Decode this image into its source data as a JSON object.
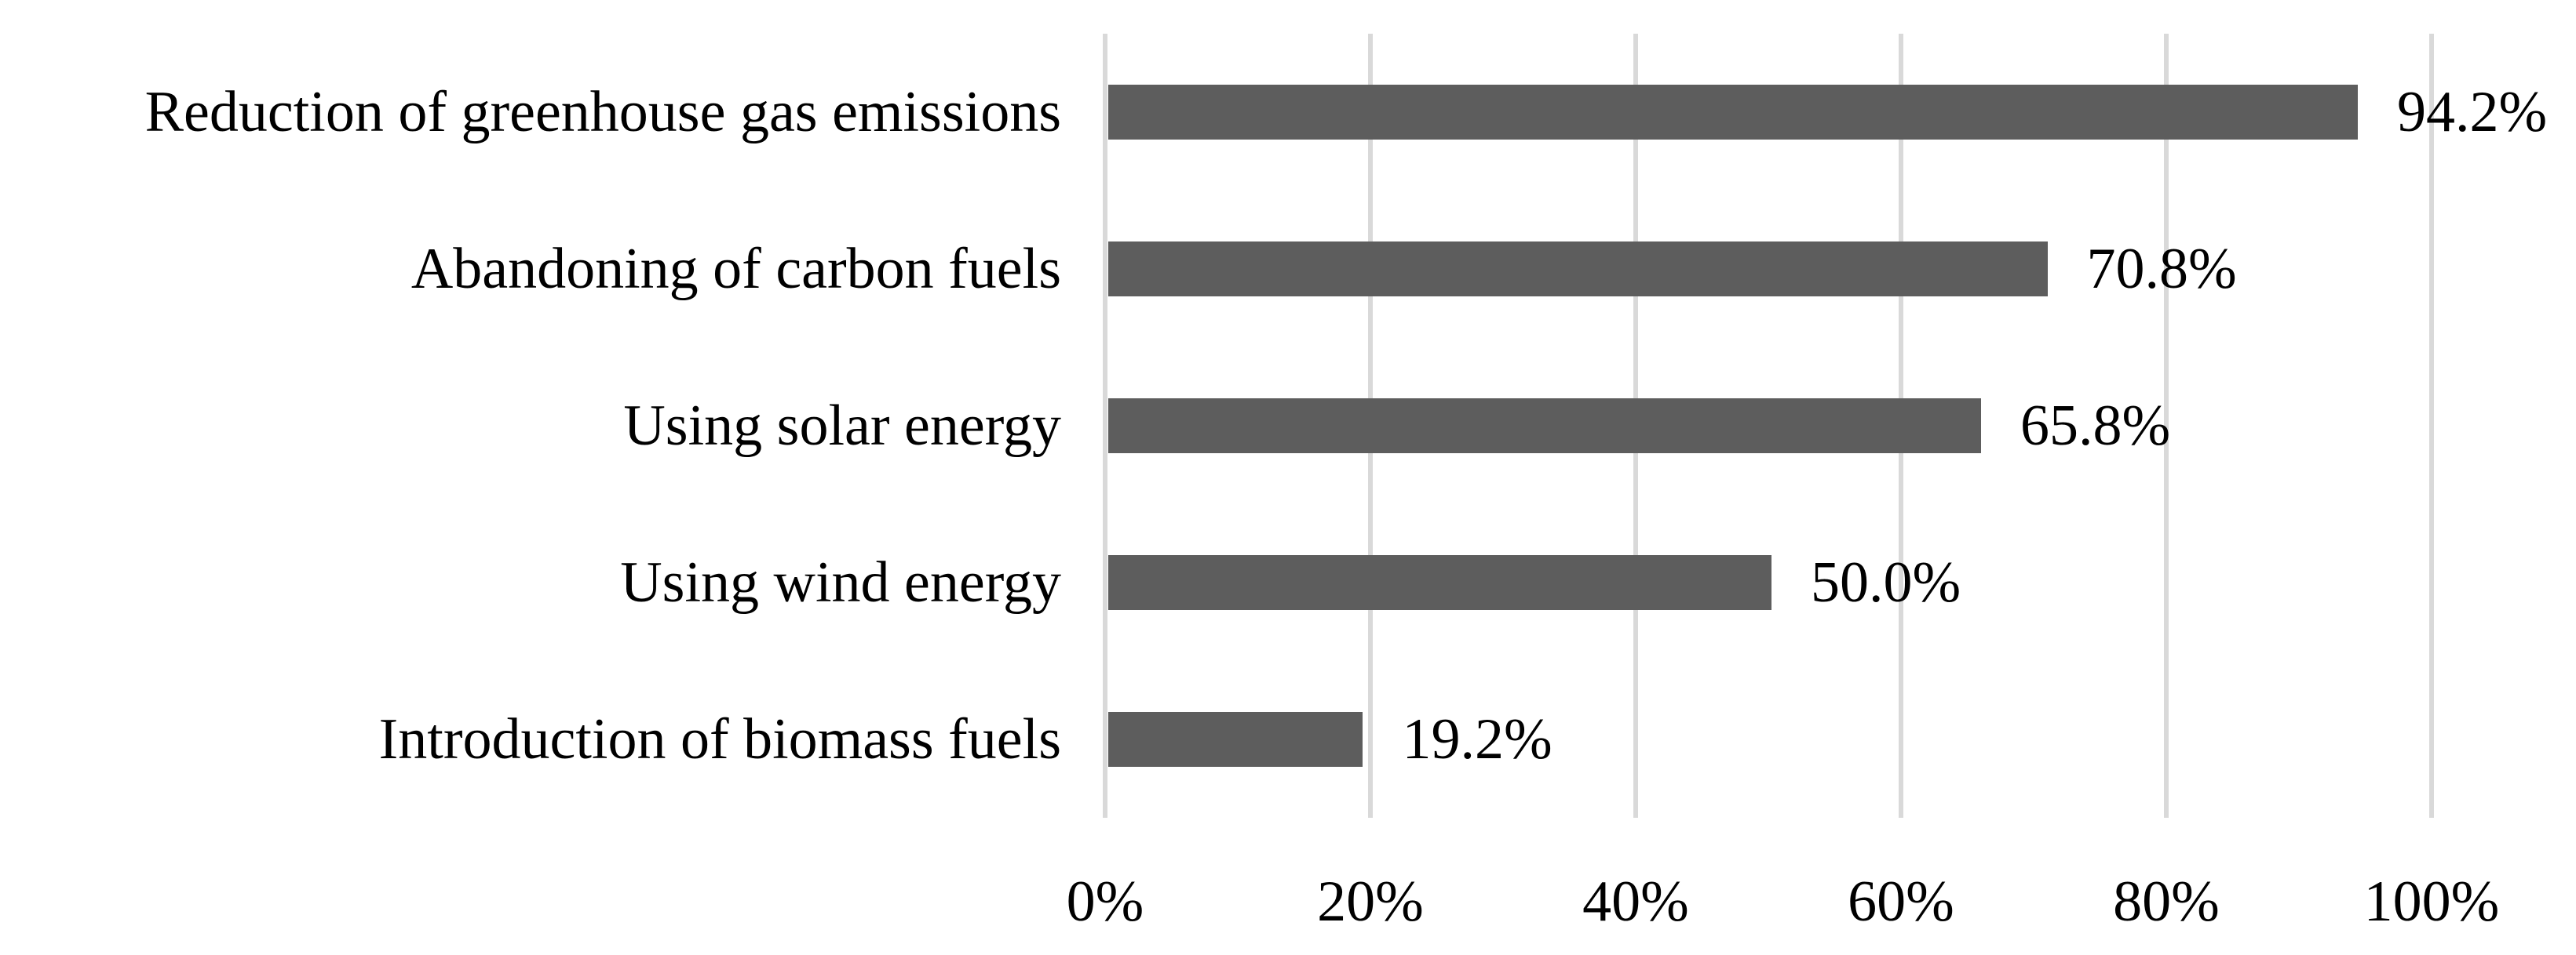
{
  "chart_data": {
    "type": "bar",
    "orientation": "horizontal",
    "title": "",
    "xlabel": "",
    "ylabel": "",
    "categories": [
      "Reduction of greenhouse gas emissions",
      "Abandoning of carbon fuels",
      "Using solar energy",
      "Using wind energy",
      "Introduction of biomass fuels"
    ],
    "values": [
      94.2,
      70.8,
      65.8,
      50.0,
      19.2
    ],
    "value_labels": [
      "94.2%",
      "70.8%",
      "65.8%",
      "50.0%",
      "19.2%"
    ],
    "x_ticks": [
      "0%",
      "20%",
      "40%",
      "60%",
      "80%",
      "100%"
    ],
    "x_tick_values": [
      0,
      20,
      40,
      60,
      80,
      100
    ],
    "xlim": [
      0,
      100
    ],
    "grid": "vertical-gridlines-on",
    "legend": "none",
    "bar_color": "#5d5d5d",
    "gridline_color": "#d9d9d9",
    "text_color": "#000000",
    "background_color": "#ffffff"
  }
}
